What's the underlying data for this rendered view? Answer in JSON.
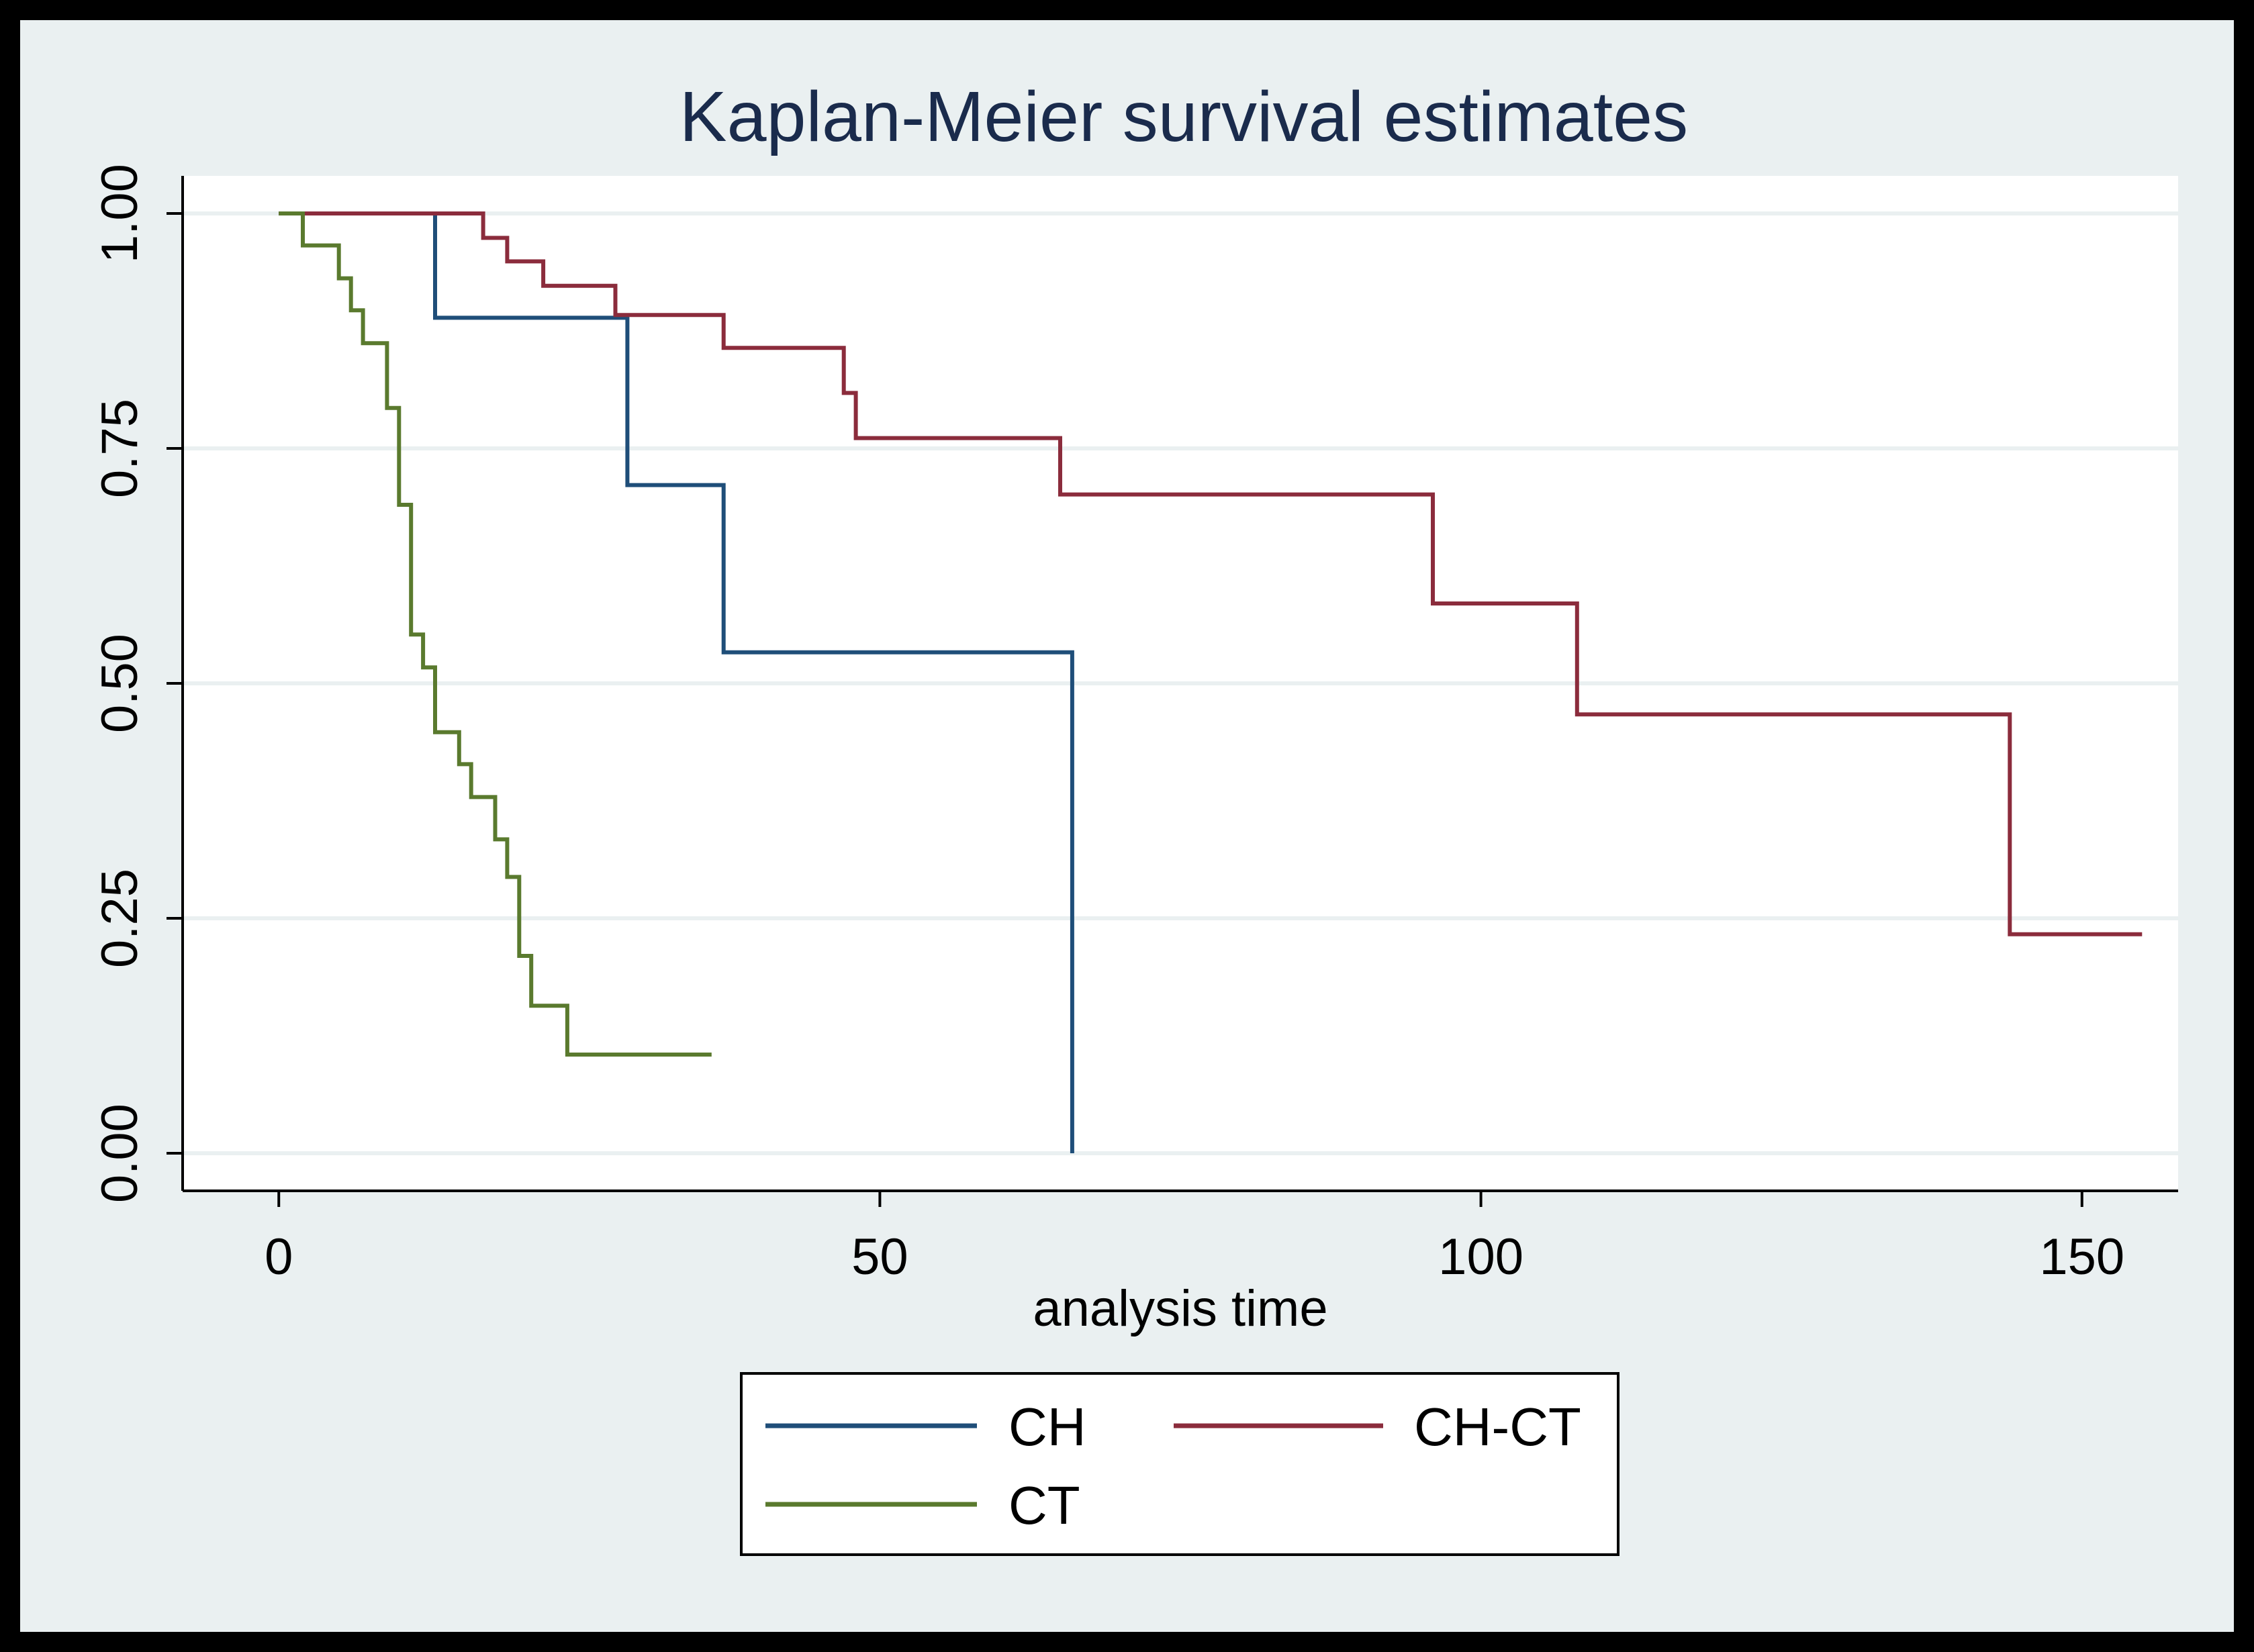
{
  "chart_data": {
    "type": "line",
    "step": true,
    "title": "Kaplan-Meier survival estimates",
    "xlabel": "analysis time",
    "ylabel": "",
    "xlim": [
      -8,
      158
    ],
    "ylim": [
      -0.04,
      1.04
    ],
    "xticks": [
      0,
      50,
      100,
      150
    ],
    "xtick_labels": [
      "0",
      "50",
      "100",
      "150"
    ],
    "yticks": [
      0,
      0.25,
      0.5,
      0.75,
      1
    ],
    "ytick_labels": [
      "0.00",
      "0.25",
      "0.50",
      "0.75",
      "1.00"
    ],
    "grid": "horizontal",
    "legend_position": "bottom",
    "series": [
      {
        "name": "CH",
        "color": "#1f4e79",
        "points": [
          [
            0,
            1.0
          ],
          [
            13,
            1.0
          ],
          [
            13,
            0.889
          ],
          [
            29,
            0.889
          ],
          [
            29,
            0.711
          ],
          [
            37,
            0.711
          ],
          [
            37,
            0.533
          ],
          [
            66,
            0.533
          ],
          [
            66,
            0.0
          ]
        ]
      },
      {
        "name": "CH-CT",
        "color": "#8b2c3c",
        "points": [
          [
            0,
            1.0
          ],
          [
            17,
            1.0
          ],
          [
            17,
            0.974
          ],
          [
            19,
            0.974
          ],
          [
            19,
            0.949
          ],
          [
            22,
            0.949
          ],
          [
            22,
            0.923
          ],
          [
            28,
            0.923
          ],
          [
            28,
            0.892
          ],
          [
            37,
            0.892
          ],
          [
            37,
            0.857
          ],
          [
            47,
            0.857
          ],
          [
            47,
            0.809
          ],
          [
            48,
            0.809
          ],
          [
            48,
            0.761
          ],
          [
            65,
            0.761
          ],
          [
            65,
            0.701
          ],
          [
            96,
            0.701
          ],
          [
            96,
            0.585
          ],
          [
            108,
            0.585
          ],
          [
            108,
            0.467
          ],
          [
            144,
            0.467
          ],
          [
            144,
            0.233
          ],
          [
            155,
            0.233
          ]
        ]
      },
      {
        "name": "CT",
        "color": "#5a7a2e",
        "points": [
          [
            0,
            1.0
          ],
          [
            2,
            1.0
          ],
          [
            2,
            0.966
          ],
          [
            5,
            0.966
          ],
          [
            5,
            0.931
          ],
          [
            6,
            0.931
          ],
          [
            6,
            0.897
          ],
          [
            7,
            0.897
          ],
          [
            7,
            0.862
          ],
          [
            9,
            0.862
          ],
          [
            9,
            0.793
          ],
          [
            10,
            0.793
          ],
          [
            10,
            0.69
          ],
          [
            11,
            0.69
          ],
          [
            11,
            0.552
          ],
          [
            12,
            0.552
          ],
          [
            12,
            0.517
          ],
          [
            13,
            0.517
          ],
          [
            13,
            0.448
          ],
          [
            15,
            0.448
          ],
          [
            15,
            0.414
          ],
          [
            16,
            0.414
          ],
          [
            16,
            0.379
          ],
          [
            18,
            0.379
          ],
          [
            18,
            0.334
          ],
          [
            19,
            0.334
          ],
          [
            19,
            0.294
          ],
          [
            20,
            0.294
          ],
          [
            20,
            0.21
          ],
          [
            21,
            0.21
          ],
          [
            21,
            0.157
          ],
          [
            24,
            0.157
          ],
          [
            24,
            0.105
          ],
          [
            36,
            0.105
          ]
        ]
      }
    ]
  },
  "colors": {
    "outer_background": "#eaf0f1",
    "plot_background": "#ffffff",
    "gridline": "#eaf0f1",
    "axis": "#000000",
    "title": "#1a2b4c",
    "text": "#000000"
  }
}
